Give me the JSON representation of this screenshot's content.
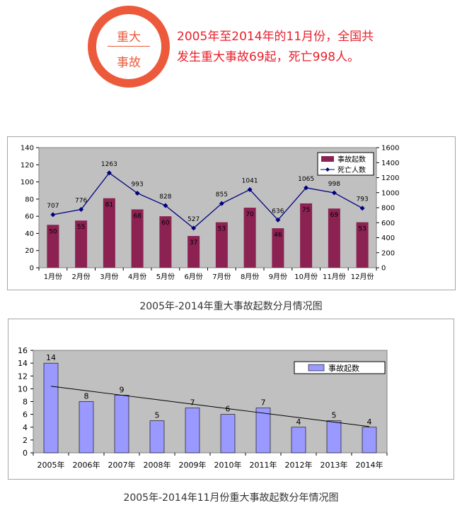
{
  "header": {
    "badge_line1": "重大",
    "badge_line2": "事故",
    "headline": "2005年至2014年的11月份，全国共发生重大事故69起，死亡998人。",
    "accent_color": "#ec5a3b",
    "headline_color": "#e8202c"
  },
  "charts": {
    "monthly": {
      "caption": "2005年-2014年重大事故起数分月情况图"
    },
    "yearly": {
      "caption": "2005年-2014年11月份重大事故起数分年情况图"
    }
  },
  "chart_data": [
    {
      "type": "bar",
      "categories": [
        "1月份",
        "2月份",
        "3月份",
        "4月份",
        "5月份",
        "6月份",
        "7月份",
        "8月份",
        "9月份",
        "10月份",
        "11月份",
        "12月份"
      ],
      "series": [
        {
          "name": "事故起数",
          "type": "bar",
          "axis": "left",
          "color": "#8b2252",
          "values": [
            50,
            55,
            81,
            68,
            60,
            37,
            53,
            70,
            46,
            75,
            69,
            53
          ]
        },
        {
          "name": "死亡人数",
          "type": "line",
          "axis": "right",
          "color": "#000080",
          "values": [
            707,
            776,
            1263,
            993,
            828,
            527,
            855,
            1041,
            636,
            1065,
            998,
            793
          ]
        }
      ],
      "ylim": [
        0,
        140
      ],
      "yticks": [
        0,
        20,
        40,
        60,
        80,
        100,
        120,
        140
      ],
      "y2lim": [
        0,
        1600
      ],
      "y2ticks": [
        0,
        200,
        400,
        600,
        800,
        1000,
        1200,
        1400,
        1600
      ],
      "legend": "top-right",
      "background": "#c0c0c0"
    },
    {
      "type": "bar",
      "categories": [
        "2005年",
        "2006年",
        "2007年",
        "2008年",
        "2009年",
        "2010年",
        "2011年",
        "2012年",
        "2013年",
        "2014年"
      ],
      "series": [
        {
          "name": "事故起数",
          "color": "#9999ff",
          "values": [
            14,
            8,
            9,
            5,
            7,
            6,
            7,
            4,
            5,
            4
          ]
        }
      ],
      "trendline": [
        10.4,
        9.7,
        9.0,
        8.3,
        7.6,
        6.9,
        6.2,
        5.5,
        4.8,
        4.1
      ],
      "ylim": [
        0,
        16
      ],
      "yticks": [
        0,
        2,
        4,
        6,
        8,
        10,
        12,
        14,
        16
      ],
      "legend": "top-right",
      "background": "#c0c0c0"
    }
  ]
}
